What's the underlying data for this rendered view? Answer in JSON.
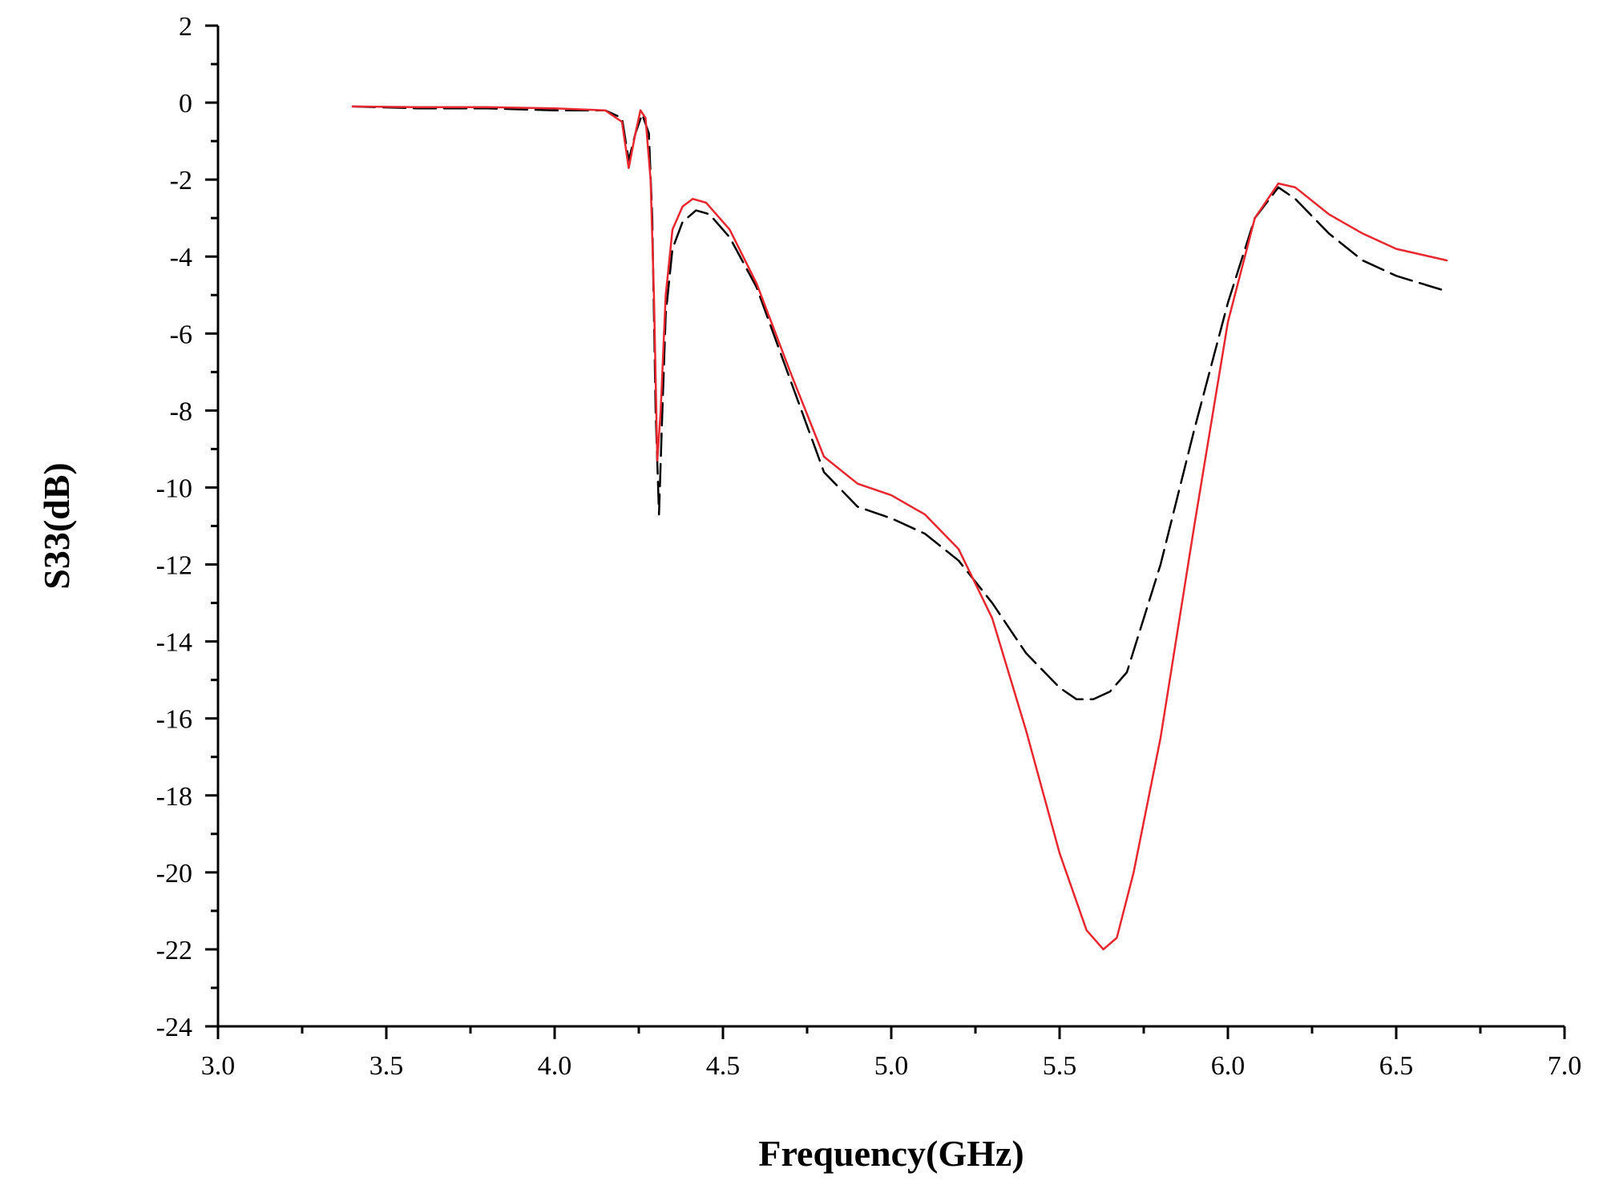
{
  "chart_data": {
    "type": "line",
    "title": "",
    "xlabel": "Frequency(GHz)",
    "ylabel": "S33(dB)",
    "xlim": [
      3.0,
      7.0
    ],
    "ylim": [
      -24,
      2
    ],
    "x_ticks": [
      "3.0",
      "3.5",
      "4.0",
      "4.5",
      "5.0",
      "5.5",
      "6.0",
      "6.5",
      "7.0"
    ],
    "y_ticks": [
      "2",
      "0",
      "-2",
      "-4",
      "-6",
      "-8",
      "-10",
      "-12",
      "-14",
      "-16",
      "-18",
      "-20",
      "-22",
      "-24"
    ],
    "grid": false,
    "legend": "none",
    "series": [
      {
        "color": "#000000",
        "style": "dashed",
        "points": [
          [
            3.4,
            -0.1
          ],
          [
            3.6,
            -0.15
          ],
          [
            3.8,
            -0.15
          ],
          [
            4.0,
            -0.2
          ],
          [
            4.15,
            -0.2
          ],
          [
            4.2,
            -0.4
          ],
          [
            4.22,
            -1.5
          ],
          [
            4.24,
            -0.8
          ],
          [
            4.26,
            -0.3
          ],
          [
            4.28,
            -0.8
          ],
          [
            4.29,
            -3.0
          ],
          [
            4.3,
            -8.0
          ],
          [
            4.31,
            -10.7
          ],
          [
            4.32,
            -8.0
          ],
          [
            4.33,
            -5.5
          ],
          [
            4.35,
            -3.8
          ],
          [
            4.38,
            -3.1
          ],
          [
            4.42,
            -2.8
          ],
          [
            4.46,
            -2.9
          ],
          [
            4.52,
            -3.5
          ],
          [
            4.6,
            -4.8
          ],
          [
            4.7,
            -7.2
          ],
          [
            4.8,
            -9.6
          ],
          [
            4.9,
            -10.5
          ],
          [
            5.0,
            -10.8
          ],
          [
            5.1,
            -11.2
          ],
          [
            5.2,
            -11.9
          ],
          [
            5.3,
            -13.0
          ],
          [
            5.4,
            -14.3
          ],
          [
            5.5,
            -15.2
          ],
          [
            5.55,
            -15.5
          ],
          [
            5.6,
            -15.5
          ],
          [
            5.65,
            -15.3
          ],
          [
            5.7,
            -14.8
          ],
          [
            5.8,
            -12.0
          ],
          [
            5.9,
            -8.5
          ],
          [
            6.0,
            -5.2
          ],
          [
            6.08,
            -3.0
          ],
          [
            6.15,
            -2.2
          ],
          [
            6.2,
            -2.5
          ],
          [
            6.3,
            -3.4
          ],
          [
            6.4,
            -4.1
          ],
          [
            6.5,
            -4.5
          ],
          [
            6.65,
            -4.9
          ]
        ]
      },
      {
        "color": "#e8262d",
        "style": "solid",
        "points": [
          [
            3.4,
            -0.1
          ],
          [
            3.6,
            -0.12
          ],
          [
            3.8,
            -0.12
          ],
          [
            4.0,
            -0.15
          ],
          [
            4.15,
            -0.2
          ],
          [
            4.2,
            -0.5
          ],
          [
            4.22,
            -1.7
          ],
          [
            4.24,
            -0.8
          ],
          [
            4.255,
            -0.2
          ],
          [
            4.27,
            -0.4
          ],
          [
            4.285,
            -2.0
          ],
          [
            4.295,
            -5.0
          ],
          [
            4.305,
            -9.3
          ],
          [
            4.315,
            -8.0
          ],
          [
            4.33,
            -5.0
          ],
          [
            4.35,
            -3.3
          ],
          [
            4.38,
            -2.7
          ],
          [
            4.41,
            -2.5
          ],
          [
            4.45,
            -2.6
          ],
          [
            4.52,
            -3.3
          ],
          [
            4.6,
            -4.7
          ],
          [
            4.7,
            -7.0
          ],
          [
            4.8,
            -9.2
          ],
          [
            4.9,
            -9.9
          ],
          [
            5.0,
            -10.2
          ],
          [
            5.1,
            -10.7
          ],
          [
            5.2,
            -11.6
          ],
          [
            5.3,
            -13.4
          ],
          [
            5.4,
            -16.3
          ],
          [
            5.5,
            -19.5
          ],
          [
            5.58,
            -21.5
          ],
          [
            5.63,
            -22.0
          ],
          [
            5.67,
            -21.7
          ],
          [
            5.72,
            -20.0
          ],
          [
            5.8,
            -16.5
          ],
          [
            5.9,
            -11.0
          ],
          [
            6.0,
            -5.7
          ],
          [
            6.08,
            -3.0
          ],
          [
            6.15,
            -2.1
          ],
          [
            6.2,
            -2.2
          ],
          [
            6.3,
            -2.9
          ],
          [
            6.4,
            -3.4
          ],
          [
            6.5,
            -3.8
          ],
          [
            6.65,
            -4.1
          ]
        ]
      }
    ]
  }
}
